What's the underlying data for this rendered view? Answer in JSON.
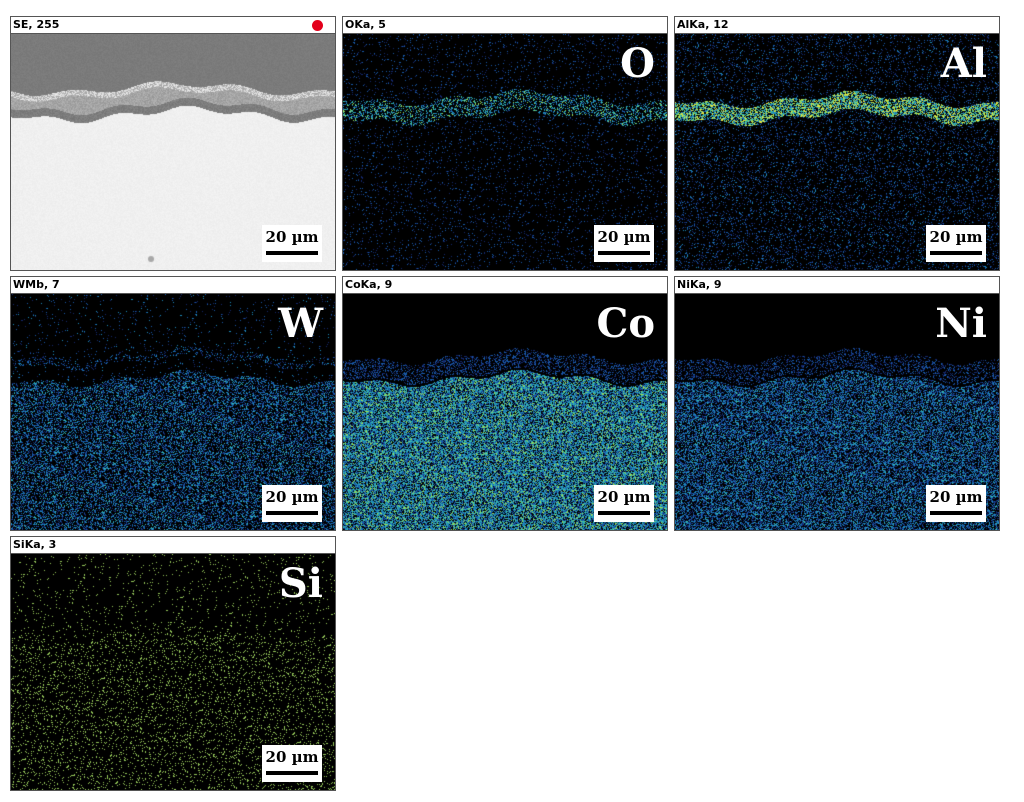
{
  "panels": [
    {
      "id": "se",
      "header": "SE, 255",
      "element": "",
      "scale": "20 µm",
      "kind": "se",
      "marker_color": "#e3001b"
    },
    {
      "id": "o",
      "header": "OKa, 5",
      "element": "O",
      "scale": "20 µm",
      "kind": "o"
    },
    {
      "id": "al",
      "header": "AlKa, 12",
      "element": "Al",
      "scale": "20 µm",
      "kind": "al"
    },
    {
      "id": "w",
      "header": "WMb, 7",
      "element": "W",
      "scale": "20 µm",
      "kind": "w"
    },
    {
      "id": "co",
      "header": "CoKa, 9",
      "element": "Co",
      "scale": "20 µm",
      "kind": "co"
    },
    {
      "id": "ni",
      "header": "NiKa, 9",
      "element": "Ni",
      "scale": "20 µm",
      "kind": "ni"
    },
    {
      "id": "si",
      "header": "SiKa, 3",
      "element": "Si",
      "scale": "20 µm",
      "kind": "si"
    }
  ]
}
